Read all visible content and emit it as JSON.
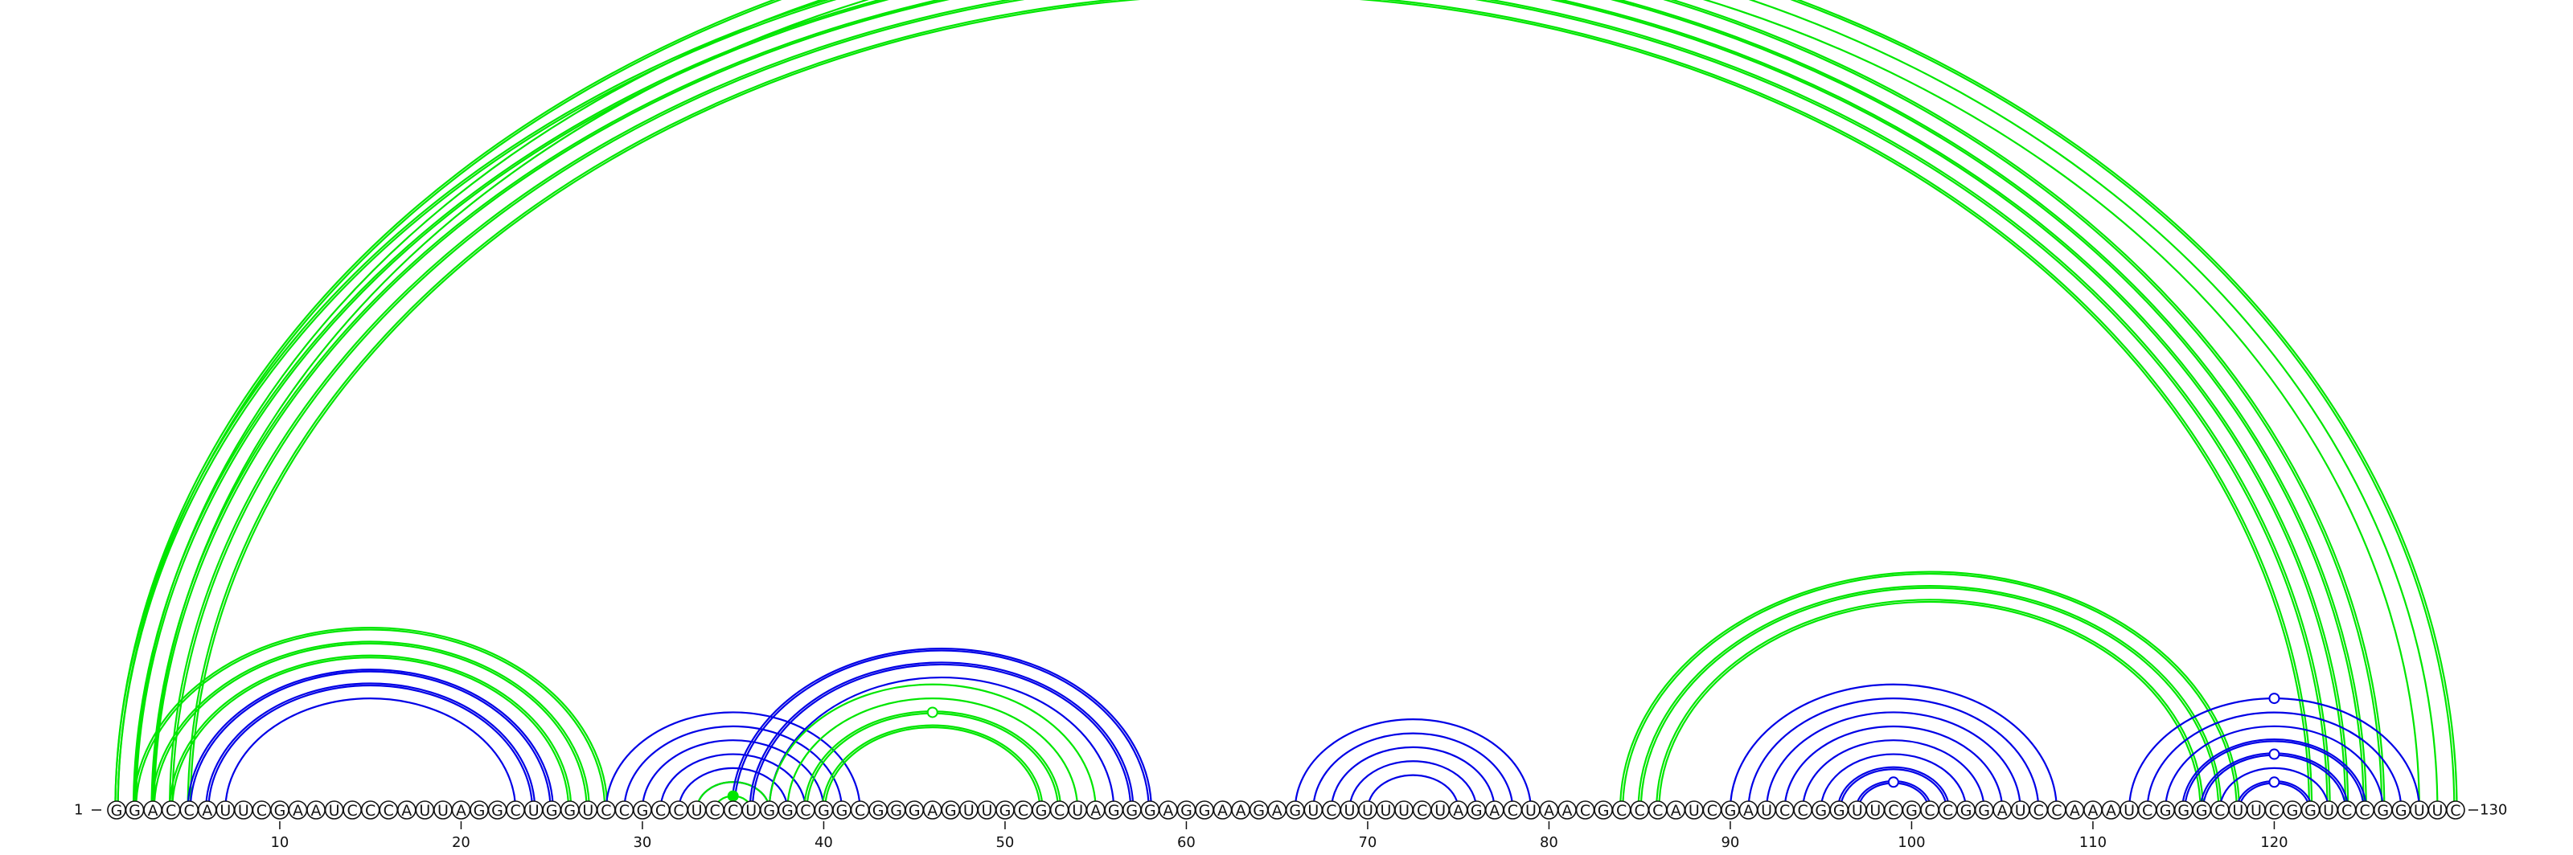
{
  "sequence": {
    "letters": "GGACCAUUCGAAUCCCAUUAGGCUGGUCCGCCUCCUGGCGGCGGGAGUUGCGCUAGGGAGGAAGAGUCUUUUCUAGACUAACGCCCAUCGAUCCGGUUCGCCGGAUCCAAAUCGGGCUUCGGUCCGGUUC",
    "start_label": "1",
    "end_label": "130",
    "ticks": [
      10,
      20,
      30,
      40,
      50,
      60,
      70,
      80,
      90,
      100,
      110,
      120
    ]
  },
  "colors": {
    "green": "#00e600",
    "blue": "#0000e6"
  },
  "arcs": [
    {
      "color": "green",
      "i": 1,
      "j": 126,
      "lines": 2
    },
    {
      "color": "green",
      "i": 2,
      "j": 125,
      "lines": 2
    },
    {
      "color": "green",
      "i": 3,
      "j": 124,
      "lines": 2
    },
    {
      "color": "green",
      "i": 4,
      "j": 123,
      "lines": 2
    },
    {
      "color": "green",
      "i": 5,
      "j": 122,
      "lines": 2
    },
    {
      "color": "green",
      "i": 1,
      "j": 130,
      "lines": 2
    },
    {
      "color": "green",
      "i": 2,
      "j": 129,
      "lines": 1
    },
    {
      "color": "green",
      "i": 3,
      "j": 128,
      "lines": 1
    },
    {
      "color": "green",
      "i": 2,
      "j": 28,
      "lines": 2
    },
    {
      "color": "green",
      "i": 3,
      "j": 27,
      "lines": 2
    },
    {
      "color": "green",
      "i": 4,
      "j": 26,
      "lines": 2
    },
    {
      "color": "blue",
      "i": 5,
      "j": 25,
      "lines": 2
    },
    {
      "color": "blue",
      "i": 6,
      "j": 24,
      "lines": 2
    },
    {
      "color": "blue",
      "i": 7,
      "j": 23,
      "lines": 1
    },
    {
      "color": "blue",
      "i": 28,
      "j": 42,
      "lines": 1
    },
    {
      "color": "blue",
      "i": 29,
      "j": 41,
      "lines": 1
    },
    {
      "color": "blue",
      "i": 30,
      "j": 40,
      "lines": 1
    },
    {
      "color": "blue",
      "i": 31,
      "j": 39,
      "lines": 1
    },
    {
      "color": "blue",
      "i": 32,
      "j": 38,
      "lines": 1
    },
    {
      "color": "blue",
      "i": 33,
      "j": 37,
      "lines": 1
    },
    {
      "color": "green",
      "i": 34,
      "j": 36,
      "lines": 1
    },
    {
      "color": "green",
      "i": 33,
      "j": 37,
      "lines": 1
    },
    {
      "color": "blue",
      "i": 35,
      "j": 58,
      "lines": 2
    },
    {
      "color": "blue",
      "i": 36,
      "j": 57,
      "lines": 2
    },
    {
      "color": "blue",
      "i": 37,
      "j": 56,
      "lines": 1
    },
    {
      "color": "green",
      "i": 37,
      "j": 55,
      "lines": 1
    },
    {
      "color": "green",
      "i": 38,
      "j": 54,
      "lines": 1
    },
    {
      "color": "green",
      "i": 39,
      "j": 53,
      "lines": 2
    },
    {
      "color": "green",
      "i": 40,
      "j": 52,
      "lines": 2
    },
    {
      "color": "blue",
      "i": 66,
      "j": 79,
      "lines": 1
    },
    {
      "color": "blue",
      "i": 67,
      "j": 78,
      "lines": 1
    },
    {
      "color": "blue",
      "i": 68,
      "j": 77,
      "lines": 1
    },
    {
      "color": "blue",
      "i": 69,
      "j": 76,
      "lines": 1
    },
    {
      "color": "blue",
      "i": 70,
      "j": 75,
      "lines": 1
    },
    {
      "color": "green",
      "i": 84,
      "j": 118,
      "lines": 2
    },
    {
      "color": "green",
      "i": 85,
      "j": 117,
      "lines": 2
    },
    {
      "color": "green",
      "i": 86,
      "j": 116,
      "lines": 2
    },
    {
      "color": "blue",
      "i": 90,
      "j": 108,
      "lines": 1
    },
    {
      "color": "blue",
      "i": 91,
      "j": 107,
      "lines": 1
    },
    {
      "color": "blue",
      "i": 92,
      "j": 106,
      "lines": 1
    },
    {
      "color": "blue",
      "i": 93,
      "j": 105,
      "lines": 1
    },
    {
      "color": "blue",
      "i": 94,
      "j": 104,
      "lines": 1
    },
    {
      "color": "blue",
      "i": 95,
      "j": 103,
      "lines": 1
    },
    {
      "color": "blue",
      "i": 96,
      "j": 102,
      "lines": 2
    },
    {
      "color": "blue",
      "i": 97,
      "j": 101,
      "lines": 2
    },
    {
      "color": "blue",
      "i": 112,
      "j": 128,
      "lines": 1
    },
    {
      "color": "blue",
      "i": 113,
      "j": 127,
      "lines": 1
    },
    {
      "color": "blue",
      "i": 114,
      "j": 126,
      "lines": 1
    },
    {
      "color": "blue",
      "i": 115,
      "j": 125,
      "lines": 2
    },
    {
      "color": "blue",
      "i": 116,
      "j": 124,
      "lines": 2
    },
    {
      "color": "blue",
      "i": 117,
      "j": 123,
      "lines": 1
    },
    {
      "color": "blue",
      "i": 118,
      "j": 122,
      "lines": 2
    }
  ],
  "markers": [
    {
      "color": "green",
      "i": 1,
      "j": 130,
      "fill": false
    },
    {
      "color": "green",
      "i": 39,
      "j": 53,
      "fill": false
    },
    {
      "color": "green",
      "i": 34,
      "j": 36,
      "fill": true
    },
    {
      "color": "blue",
      "i": 97,
      "j": 101,
      "fill": false
    },
    {
      "color": "blue",
      "i": 118,
      "j": 122,
      "fill": false
    },
    {
      "color": "blue",
      "i": 116,
      "j": 124,
      "fill": false
    },
    {
      "color": "blue",
      "i": 112,
      "j": 128,
      "fill": false
    }
  ]
}
